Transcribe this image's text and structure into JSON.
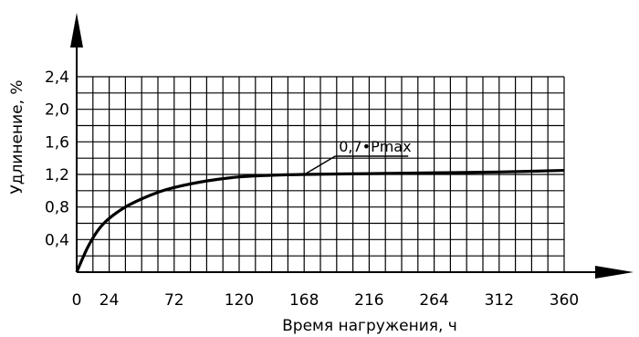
{
  "chart_data": {
    "type": "line",
    "title": "",
    "xlabel": "Время нагружения, ч",
    "ylabel": "Удлинение, %",
    "xlim": [
      0,
      360
    ],
    "ylim": [
      0,
      2.4
    ],
    "grid": true,
    "x_ticks": [
      0,
      24,
      72,
      120,
      168,
      216,
      264,
      312,
      360
    ],
    "x_tick_labels": [
      "0",
      "24",
      "72",
      "120",
      "168",
      "216",
      "264",
      "312",
      "360"
    ],
    "y_ticks": [
      0.4,
      0.8,
      1.2,
      1.6,
      2.0,
      2.4
    ],
    "y_tick_labels": [
      "0,4",
      "0,8",
      "1,2",
      "1,6",
      "2,0",
      "2,4"
    ],
    "series": [
      {
        "name": "0,7•Pmax",
        "x": [
          0,
          8,
          16,
          24,
          36,
          48,
          60,
          72,
          96,
          120,
          144,
          168,
          216,
          264,
          312,
          360
        ],
        "y": [
          0,
          0.3,
          0.52,
          0.66,
          0.8,
          0.9,
          0.98,
          1.04,
          1.12,
          1.17,
          1.19,
          1.2,
          1.21,
          1.22,
          1.23,
          1.25
        ]
      }
    ],
    "annotations": [
      {
        "text": "0,7•Pmax",
        "x": 168,
        "y": 1.2
      }
    ]
  }
}
